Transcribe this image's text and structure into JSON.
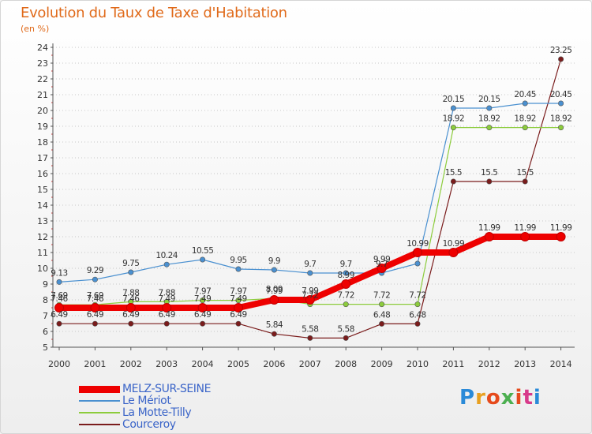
{
  "chart_data": {
    "type": "line",
    "title": "Evolution du Taux de Taxe d'Habitation",
    "subtitle": "(en %)",
    "xlabel": "",
    "ylabel": "",
    "x": [
      "2000",
      "2001",
      "2002",
      "2003",
      "2004",
      "2005",
      "2006",
      "2007",
      "2008",
      "2009",
      "2010",
      "2011",
      "2012",
      "2013",
      "2014"
    ],
    "ylim": [
      5,
      24
    ],
    "yticks": [
      5,
      6,
      7,
      8,
      9,
      10,
      11,
      12,
      13,
      14,
      15,
      16,
      17,
      18,
      19,
      20,
      21,
      22,
      23,
      24
    ],
    "grid": "horizontal dotted",
    "legend_position": "bottom-left",
    "series": [
      {
        "name": "MELZ-SUR-SEINE",
        "color": "#ee0000",
        "values": [
          7.5,
          7.5,
          7.5,
          7.5,
          7.5,
          7.5,
          8.0,
          8.0,
          9.0,
          10.0,
          11.0,
          11.0,
          12.0,
          12.0,
          12.0
        ],
        "labels": [
          "7.46",
          "7.46",
          "7.46",
          "7.49",
          "7.49",
          "7.49",
          "7.99",
          "7.99",
          "8.99",
          "9.99",
          "10.99",
          "10.99",
          "11.99",
          "11.99",
          "11.99"
        ]
      },
      {
        "name": "Le Mériot",
        "color": "#4a90d0",
        "values": [
          9.13,
          9.29,
          9.75,
          10.24,
          10.55,
          9.95,
          9.9,
          9.7,
          9.7,
          9.7,
          10.3,
          20.15,
          20.15,
          20.45,
          20.45
        ],
        "labels": [
          "9.13",
          "9.29",
          "9.75",
          "10.24",
          "10.55",
          "9.95",
          "9.9",
          "9.7",
          "9.7",
          "9.7",
          "",
          "20.15",
          "20.15",
          "20.45",
          "20.45"
        ]
      },
      {
        "name": "La Motte-Tilly",
        "color": "#8ccc3c",
        "values": [
          7.69,
          7.69,
          7.88,
          7.88,
          7.97,
          7.97,
          8.09,
          7.72,
          7.72,
          7.72,
          7.72,
          18.92,
          18.92,
          18.92,
          18.92
        ],
        "labels": [
          "7.69",
          "7.69",
          "7.88",
          "7.88",
          "7.97",
          "7.97",
          "8.09",
          "7.72",
          "7.72",
          "7.72",
          "7.72",
          "18.92",
          "18.92",
          "18.92",
          "18.92"
        ]
      },
      {
        "name": "Courceroy",
        "color": "#7a1c1c",
        "values": [
          6.49,
          6.49,
          6.49,
          6.49,
          6.49,
          6.49,
          5.84,
          5.58,
          5.58,
          6.48,
          6.48,
          15.5,
          15.5,
          15.5,
          23.25
        ],
        "labels": [
          "6.49",
          "6.49",
          "6.49",
          "6.49",
          "6.49",
          "6.49",
          "5.84",
          "5.58",
          "5.58",
          "6.48",
          "6.48",
          "15.5",
          "15.5",
          "15.5",
          "23.25"
        ]
      }
    ]
  },
  "branding": {
    "logo_text": "Proxiti",
    "logo_colors": [
      "#2a8ad8",
      "#e8a020",
      "#e64a1c",
      "#4caf50",
      "#e64a1c",
      "#d83a8a",
      "#2a8ad8"
    ]
  }
}
